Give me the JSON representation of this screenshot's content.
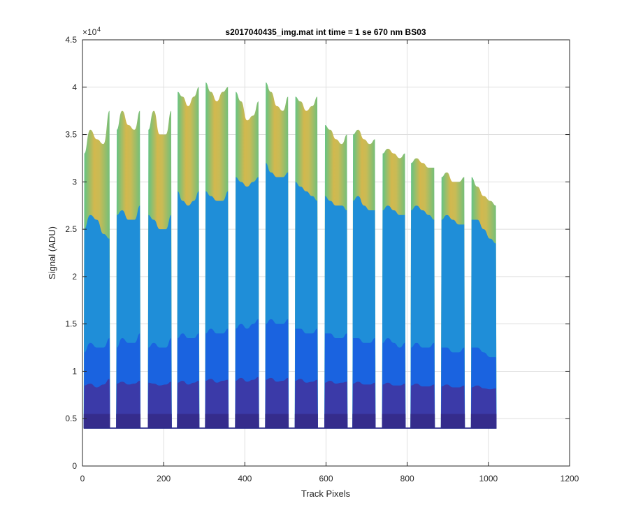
{
  "chart_data": {
    "type": "area",
    "title": "s2017040435_img.mat int time = 1 se  670 nm BS03",
    "xlabel": "Track Pixels",
    "ylabel": "Signal (ADU)",
    "xlim": [
      0,
      1200
    ],
    "ylim": [
      0,
      45000
    ],
    "x_ticks": [
      0,
      200,
      400,
      600,
      800,
      1000,
      1200
    ],
    "x_tick_labels": [
      "0",
      "200",
      "400",
      "600",
      "800",
      "1000",
      "1200"
    ],
    "y_ticks": [
      0,
      5000,
      10000,
      15000,
      20000,
      25000,
      30000,
      35000,
      40000,
      45000
    ],
    "y_tick_labels": [
      "0",
      "0.5",
      "1",
      "1.5",
      "2",
      "2.5",
      "3",
      "3.5",
      "4",
      "4.5"
    ],
    "y_exponent_label": "×10",
    "y_exponent_power": "4",
    "grid": true,
    "baseline": 4000,
    "tracks": [
      {
        "x_start": 3,
        "x_end": 68,
        "top": [
          33000,
          35500,
          34500,
          34000,
          37500
        ],
        "mid": [
          25000,
          26500,
          26000,
          24500,
          24000
        ],
        "low": [
          12000,
          13000,
          12500,
          12500,
          13500
        ],
        "base": [
          8500,
          8700,
          8300,
          8600,
          9200
        ]
      },
      {
        "x_start": 83,
        "x_end": 143,
        "top": [
          35500,
          37500,
          36000,
          35500,
          37500
        ],
        "mid": [
          26500,
          27000,
          26000,
          26000,
          27500
        ],
        "low": [
          12500,
          13500,
          13000,
          13000,
          14000
        ],
        "base": [
          8700,
          8900,
          8600,
          8700,
          9000
        ]
      },
      {
        "x_start": 161,
        "x_end": 220,
        "top": [
          35500,
          37500,
          35000,
          35000,
          37500
        ],
        "mid": [
          26500,
          26000,
          25000,
          25000,
          26500
        ],
        "low": [
          12500,
          13000,
          12500,
          12500,
          13500
        ],
        "base": [
          8800,
          8700,
          8500,
          8600,
          8900
        ]
      },
      {
        "x_start": 233,
        "x_end": 288,
        "top": [
          39500,
          39000,
          38000,
          39000,
          40000
        ],
        "mid": [
          29000,
          28000,
          27500,
          28000,
          29000
        ],
        "low": [
          13500,
          14000,
          13500,
          13500,
          14000
        ],
        "base": [
          8800,
          9000,
          8600,
          8800,
          9000
        ]
      },
      {
        "x_start": 302,
        "x_end": 360,
        "top": [
          40500,
          39500,
          38500,
          39500,
          40000
        ],
        "mid": [
          29000,
          28500,
          28000,
          28000,
          29000
        ],
        "low": [
          14000,
          14500,
          14000,
          14000,
          14500
        ],
        "base": [
          9000,
          9200,
          8800,
          9000,
          9100
        ]
      },
      {
        "x_start": 376,
        "x_end": 435,
        "top": [
          39500,
          38500,
          36500,
          37000,
          38500
        ],
        "mid": [
          30500,
          30000,
          29500,
          30000,
          30500
        ],
        "low": [
          14500,
          15000,
          14500,
          15000,
          15500
        ],
        "base": [
          9000,
          9300,
          8900,
          9100,
          9400
        ]
      },
      {
        "x_start": 450,
        "x_end": 508,
        "top": [
          40500,
          39500,
          38000,
          37500,
          39000
        ],
        "mid": [
          32000,
          31000,
          30500,
          30500,
          31000
        ],
        "low": [
          15000,
          15500,
          15000,
          15000,
          15500
        ],
        "base": [
          9100,
          9300,
          8900,
          9000,
          9300
        ]
      },
      {
        "x_start": 523,
        "x_end": 580,
        "top": [
          39000,
          38500,
          37500,
          38000,
          39000
        ],
        "mid": [
          30000,
          29500,
          29000,
          28500,
          28000
        ],
        "low": [
          14500,
          14500,
          14000,
          14000,
          14500
        ],
        "base": [
          9000,
          9200,
          8800,
          8900,
          9100
        ]
      },
      {
        "x_start": 596,
        "x_end": 653,
        "top": [
          36000,
          35500,
          34500,
          34000,
          35000
        ],
        "mid": [
          28500,
          28000,
          27500,
          27500,
          27000
        ],
        "low": [
          14000,
          14000,
          13500,
          13500,
          14000
        ],
        "base": [
          8800,
          9000,
          8700,
          8800,
          8900
        ]
      },
      {
        "x_start": 665,
        "x_end": 722,
        "top": [
          35000,
          35500,
          34500,
          34000,
          34500
        ],
        "mid": [
          28000,
          28500,
          27500,
          27000,
          27000
        ],
        "low": [
          13500,
          13500,
          13000,
          13000,
          13500
        ],
        "base": [
          8700,
          8900,
          8600,
          8600,
          8800
        ]
      },
      {
        "x_start": 738,
        "x_end": 796,
        "top": [
          33000,
          33500,
          33000,
          32500,
          33000
        ],
        "mid": [
          27000,
          27500,
          27000,
          26500,
          26500
        ],
        "low": [
          13000,
          13500,
          13000,
          12500,
          13000
        ],
        "base": [
          8600,
          8800,
          8500,
          8500,
          8700
        ]
      },
      {
        "x_start": 808,
        "x_end": 868,
        "top": [
          32000,
          32500,
          32000,
          31500,
          31500
        ],
        "mid": [
          27000,
          27500,
          27000,
          26500,
          26000
        ],
        "low": [
          12500,
          13000,
          12500,
          12500,
          13000
        ],
        "base": [
          8500,
          8700,
          8400,
          8400,
          8600
        ]
      },
      {
        "x_start": 883,
        "x_end": 942,
        "top": [
          30500,
          31000,
          30000,
          30000,
          30500
        ],
        "mid": [
          26000,
          26500,
          26000,
          25500,
          25500
        ],
        "low": [
          12500,
          12500,
          12000,
          12000,
          12500
        ],
        "base": [
          8400,
          8600,
          8300,
          8300,
          8500
        ]
      },
      {
        "x_start": 957,
        "x_end": 1020,
        "top": [
          30500,
          29500,
          28500,
          28000,
          27500
        ],
        "mid": [
          26000,
          26000,
          25000,
          24000,
          23500
        ],
        "low": [
          12500,
          12500,
          12000,
          11500,
          11500
        ],
        "base": [
          8300,
          8500,
          8200,
          8100,
          8200
        ]
      }
    ]
  }
}
